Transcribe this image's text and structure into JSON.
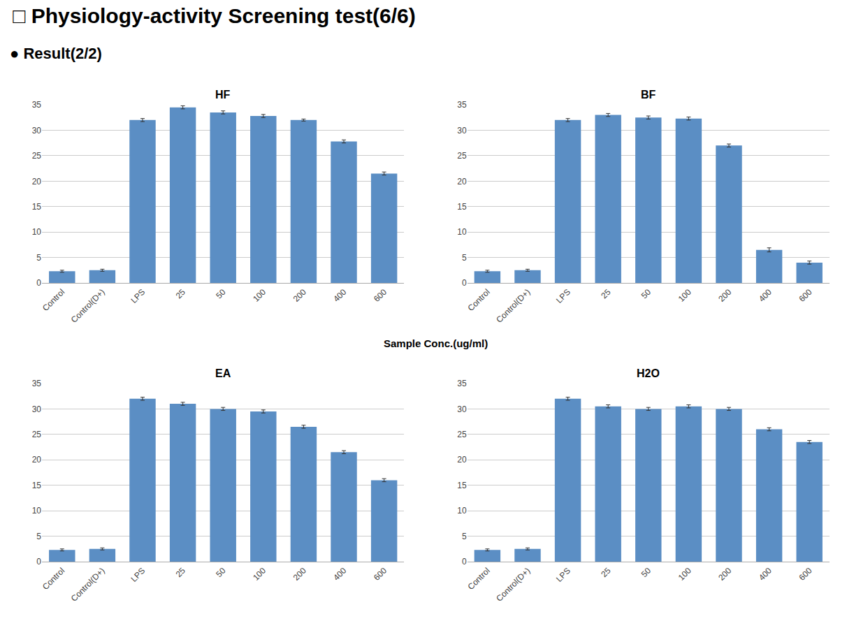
{
  "title": "□ Physiology-activity Screening test(6/6)",
  "subtitle": "● Result(2/2)",
  "xlabel": "Sample Conc.(ug/ml)",
  "chart_data": [
    {
      "type": "bar",
      "title": "HF",
      "categories": [
        "Control",
        "Control(D+)",
        "LPS",
        "25",
        "50",
        "100",
        "200",
        "400",
        "600"
      ],
      "values": [
        2.3,
        2.5,
        32.0,
        34.5,
        33.5,
        32.8,
        32.0,
        27.8,
        21.5
      ],
      "errors": [
        0.2,
        0.2,
        0.3,
        0.3,
        0.3,
        0.3,
        0.2,
        0.3,
        0.3
      ],
      "color": "#5b8ec4",
      "ylim": [
        0,
        35
      ],
      "yticks": [
        0,
        5,
        10,
        15,
        20,
        25,
        30,
        35
      ],
      "grid": true
    },
    {
      "type": "bar",
      "title": "BF",
      "categories": [
        "Control",
        "Control(D+)",
        "LPS",
        "25",
        "50",
        "100",
        "200",
        "400",
        "600"
      ],
      "values": [
        2.3,
        2.5,
        32.0,
        33.0,
        32.5,
        32.3,
        27.0,
        6.5,
        4.0
      ],
      "errors": [
        0.2,
        0.2,
        0.3,
        0.3,
        0.3,
        0.3,
        0.3,
        0.4,
        0.3
      ],
      "color": "#5b8ec4",
      "ylim": [
        0,
        35
      ],
      "yticks": [
        0,
        5,
        10,
        15,
        20,
        25,
        30,
        35
      ],
      "grid": true
    },
    {
      "type": "bar",
      "title": "EA",
      "categories": [
        "Control",
        "Control(D+)",
        "LPS",
        "25",
        "50",
        "100",
        "200",
        "400",
        "600"
      ],
      "values": [
        2.3,
        2.5,
        32.0,
        31.0,
        30.0,
        29.5,
        26.5,
        21.5,
        16.0
      ],
      "errors": [
        0.2,
        0.2,
        0.3,
        0.3,
        0.3,
        0.3,
        0.3,
        0.3,
        0.3
      ],
      "color": "#5b8ec4",
      "ylim": [
        0,
        35
      ],
      "yticks": [
        0,
        5,
        10,
        15,
        20,
        25,
        30,
        35
      ],
      "grid": true
    },
    {
      "type": "bar",
      "title": "H2O",
      "categories": [
        "Control",
        "Control(D+)",
        "LPS",
        "25",
        "50",
        "100",
        "200",
        "400",
        "600"
      ],
      "values": [
        2.3,
        2.5,
        32.0,
        30.5,
        30.0,
        30.5,
        30.0,
        26.0,
        23.5
      ],
      "errors": [
        0.2,
        0.2,
        0.3,
        0.3,
        0.3,
        0.3,
        0.3,
        0.3,
        0.3
      ],
      "color": "#5b8ec4",
      "ylim": [
        0,
        35
      ],
      "yticks": [
        0,
        5,
        10,
        15,
        20,
        25,
        30,
        35
      ],
      "grid": true
    }
  ]
}
